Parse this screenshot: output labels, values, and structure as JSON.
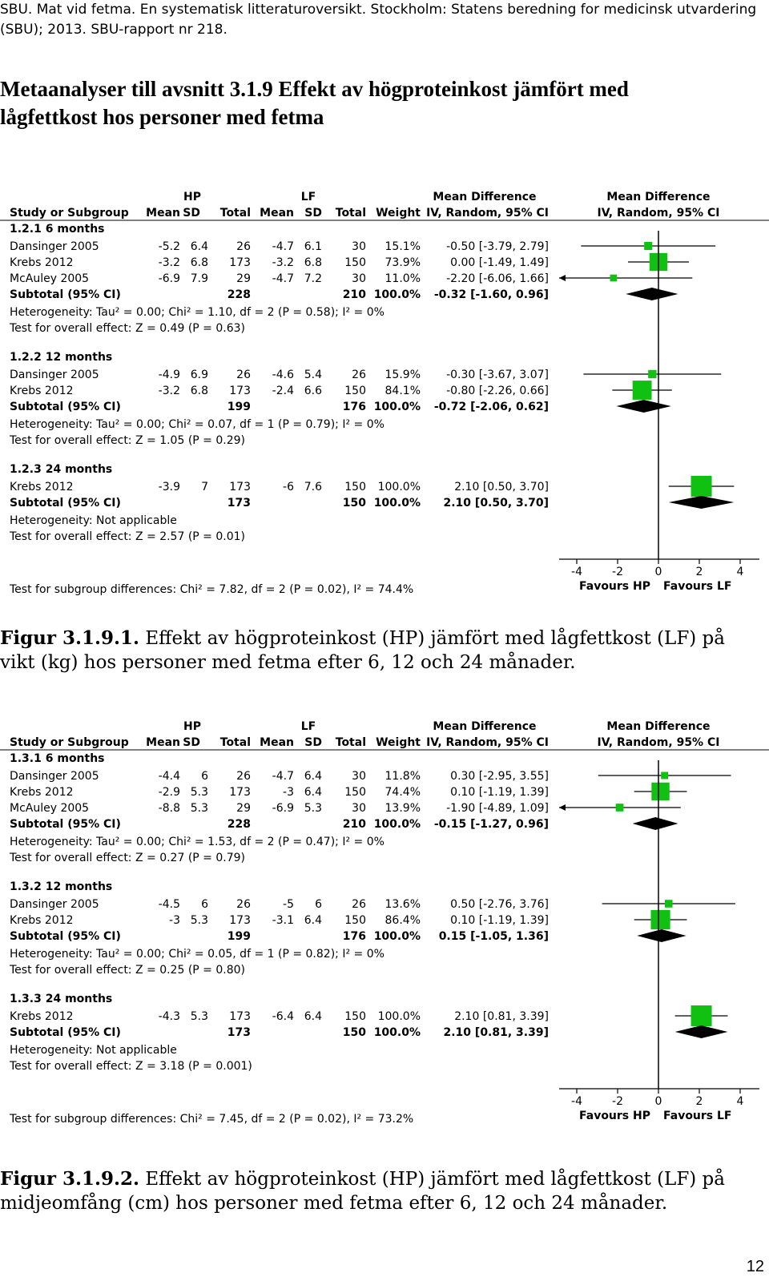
{
  "header": {
    "line1": "SBU. Mat vid fetma. En systematisk litteraturoversikt. Stockholm: Statens beredning for medicinsk utvardering",
    "line2": "(SBU); 2013. SBU-rapport nr 218."
  },
  "title": {
    "line1": "Metaanalyser till avsnitt 3.1.9 Effekt av högproteinkost jämfört med",
    "line2": "lågfettkost hos personer med fetma"
  },
  "colors": {
    "study_marker": "#11c111",
    "diamond": "#000000",
    "axis": "#000000"
  },
  "figures": [
    {
      "caption_bold": "Figur 3.1.9.1.",
      "caption_text": " Effekt av högproteinkost (HP) jämfört med lågfettkost (LF) på vikt (kg) hos personer med fetma efter 6, 12 och 24 månader."
    },
    {
      "caption_bold": "Figur 3.1.9.2.",
      "caption_text": " Effekt av högproteinkost (HP) jämfört med lågfettkost (LF) på midjeomfång (cm) hos personer med fetma efter 6, 12 och 24 månader."
    }
  ],
  "chart_data": [
    {
      "type": "forest",
      "headers": {
        "group_hp": "HP",
        "group_lf": "LF",
        "md_left": "Mean Difference",
        "md_right": "Mean Difference",
        "study": "Study or Subgroup",
        "mean": "Mean",
        "sd": "SD",
        "total": "Total",
        "weight": "Weight",
        "ci_left": "IV, Random, 95% CI",
        "ci_right": "IV, Random, 95% CI"
      },
      "xlim": [
        -4,
        4
      ],
      "xticks": [
        "-4",
        "-2",
        "0",
        "2",
        "4"
      ],
      "favours_left": "Favours HP",
      "favours_right": "Favours LF",
      "subgroups": [
        {
          "label": "1.2.1 6 months",
          "studies": [
            {
              "name": "Dansinger 2005",
              "hp_mean": "-5.2",
              "hp_sd": "6.4",
              "hp_total": "26",
              "lf_mean": "-4.7",
              "lf_sd": "6.1",
              "lf_total": "30",
              "weight_text": "15.1%",
              "ci_text": "-0.50 [-3.79, 2.79]",
              "md": -0.5,
              "lo": -3.79,
              "hi": 2.79,
              "weight": 15.1
            },
            {
              "name": "Krebs 2012",
              "hp_mean": "-3.2",
              "hp_sd": "6.8",
              "hp_total": "173",
              "lf_mean": "-3.2",
              "lf_sd": "6.8",
              "lf_total": "150",
              "weight_text": "73.9%",
              "ci_text": "0.00 [-1.49, 1.49]",
              "md": 0.0,
              "lo": -1.49,
              "hi": 1.49,
              "weight": 73.9
            },
            {
              "name": "McAuley 2005",
              "hp_mean": "-6.9",
              "hp_sd": "7.9",
              "hp_total": "29",
              "lf_mean": "-4.7",
              "lf_sd": "7.2",
              "lf_total": "30",
              "weight_text": "11.0%",
              "ci_text": "-2.20 [-6.06, 1.66]",
              "md": -2.2,
              "lo": -6.06,
              "hi": 1.66,
              "weight": 11.0
            }
          ],
          "subtotal": {
            "label": "Subtotal (95% CI)",
            "hp_total": "228",
            "lf_total": "210",
            "weight_text": "100.0%",
            "ci_text": "-0.32 [-1.60, 0.96]",
            "md": -0.32,
            "lo": -1.6,
            "hi": 0.96
          },
          "heterogeneity": "Heterogeneity: Tau² = 0.00; Chi² = 1.10, df = 2 (P = 0.58); I² = 0%",
          "overall": "Test for overall effect: Z = 0.49 (P = 0.63)"
        },
        {
          "label": "1.2.2 12 months",
          "studies": [
            {
              "name": "Dansinger 2005",
              "hp_mean": "-4.9",
              "hp_sd": "6.9",
              "hp_total": "26",
              "lf_mean": "-4.6",
              "lf_sd": "5.4",
              "lf_total": "26",
              "weight_text": "15.9%",
              "ci_text": "-0.30 [-3.67, 3.07]",
              "md": -0.3,
              "lo": -3.67,
              "hi": 3.07,
              "weight": 15.9
            },
            {
              "name": "Krebs 2012",
              "hp_mean": "-3.2",
              "hp_sd": "6.8",
              "hp_total": "173",
              "lf_mean": "-2.4",
              "lf_sd": "6.6",
              "lf_total": "150",
              "weight_text": "84.1%",
              "ci_text": "-0.80 [-2.26, 0.66]",
              "md": -0.8,
              "lo": -2.26,
              "hi": 0.66,
              "weight": 84.1
            }
          ],
          "subtotal": {
            "label": "Subtotal (95% CI)",
            "hp_total": "199",
            "lf_total": "176",
            "weight_text": "100.0%",
            "ci_text": "-0.72 [-2.06, 0.62]",
            "md": -0.72,
            "lo": -2.06,
            "hi": 0.62
          },
          "heterogeneity": "Heterogeneity: Tau² = 0.00; Chi² = 0.07, df = 1 (P = 0.79); I² = 0%",
          "overall": "Test for overall effect: Z = 1.05 (P = 0.29)"
        },
        {
          "label": "1.2.3 24 months",
          "studies": [
            {
              "name": "Krebs 2012",
              "hp_mean": "-3.9",
              "hp_sd": "7",
              "hp_total": "173",
              "lf_mean": "-6",
              "lf_sd": "7.6",
              "lf_total": "150",
              "weight_text": "100.0%",
              "ci_text": "2.10 [0.50, 3.70]",
              "md": 2.1,
              "lo": 0.5,
              "hi": 3.7,
              "weight": 100.0
            }
          ],
          "subtotal": {
            "label": "Subtotal (95% CI)",
            "hp_total": "173",
            "lf_total": "150",
            "weight_text": "100.0%",
            "ci_text": "2.10 [0.50, 3.70]",
            "md": 2.1,
            "lo": 0.5,
            "hi": 3.7
          },
          "heterogeneity": "Heterogeneity: Not applicable",
          "overall": "Test for overall effect: Z = 2.57 (P = 0.01)"
        }
      ],
      "subgroup_test": "Test for subgroup differences: Chi² = 7.82, df = 2 (P = 0.02), I² = 74.4%"
    },
    {
      "type": "forest",
      "headers": {
        "group_hp": "HP",
        "group_lf": "LF",
        "md_left": "Mean Difference",
        "md_right": "Mean Difference",
        "study": "Study or Subgroup",
        "mean": "Mean",
        "sd": "SD",
        "total": "Total",
        "weight": "Weight",
        "ci_left": "IV, Random, 95% CI",
        "ci_right": "IV, Random, 95% CI"
      },
      "xlim": [
        -4,
        4
      ],
      "xticks": [
        "-4",
        "-2",
        "0",
        "2",
        "4"
      ],
      "favours_left": "Favours HP",
      "favours_right": "Favours LF",
      "subgroups": [
        {
          "label": "1.3.1 6 months",
          "studies": [
            {
              "name": "Dansinger 2005",
              "hp_mean": "-4.4",
              "hp_sd": "6",
              "hp_total": "26",
              "lf_mean": "-4.7",
              "lf_sd": "6.4",
              "lf_total": "30",
              "weight_text": "11.8%",
              "ci_text": "0.30 [-2.95, 3.55]",
              "md": 0.3,
              "lo": -2.95,
              "hi": 3.55,
              "weight": 11.8
            },
            {
              "name": "Krebs 2012",
              "hp_mean": "-2.9",
              "hp_sd": "5.3",
              "hp_total": "173",
              "lf_mean": "-3",
              "lf_sd": "6.4",
              "lf_total": "150",
              "weight_text": "74.4%",
              "ci_text": "0.10 [-1.19, 1.39]",
              "md": 0.1,
              "lo": -1.19,
              "hi": 1.39,
              "weight": 74.4
            },
            {
              "name": "McAuley 2005",
              "hp_mean": "-8.8",
              "hp_sd": "5.3",
              "hp_total": "29",
              "lf_mean": "-6.9",
              "lf_sd": "5.3",
              "lf_total": "30",
              "weight_text": "13.9%",
              "ci_text": "-1.90 [-4.89, 1.09]",
              "md": -1.9,
              "lo": -4.89,
              "hi": 1.09,
              "weight": 13.9
            }
          ],
          "subtotal": {
            "label": "Subtotal (95% CI)",
            "hp_total": "228",
            "lf_total": "210",
            "weight_text": "100.0%",
            "ci_text": "-0.15 [-1.27, 0.96]",
            "md": -0.15,
            "lo": -1.27,
            "hi": 0.96
          },
          "heterogeneity": "Heterogeneity: Tau² = 0.00; Chi² = 1.53, df = 2 (P = 0.47); I² = 0%",
          "overall": "Test for overall effect: Z = 0.27 (P = 0.79)"
        },
        {
          "label": "1.3.2 12 months",
          "studies": [
            {
              "name": "Dansinger 2005",
              "hp_mean": "-4.5",
              "hp_sd": "6",
              "hp_total": "26",
              "lf_mean": "-5",
              "lf_sd": "6",
              "lf_total": "26",
              "weight_text": "13.6%",
              "ci_text": "0.50 [-2.76, 3.76]",
              "md": 0.5,
              "lo": -2.76,
              "hi": 3.76,
              "weight": 13.6
            },
            {
              "name": "Krebs 2012",
              "hp_mean": "-3",
              "hp_sd": "5.3",
              "hp_total": "173",
              "lf_mean": "-3.1",
              "lf_sd": "6.4",
              "lf_total": "150",
              "weight_text": "86.4%",
              "ci_text": "0.10 [-1.19, 1.39]",
              "md": 0.1,
              "lo": -1.19,
              "hi": 1.39,
              "weight": 86.4
            }
          ],
          "subtotal": {
            "label": "Subtotal (95% CI)",
            "hp_total": "199",
            "lf_total": "176",
            "weight_text": "100.0%",
            "ci_text": "0.15 [-1.05, 1.36]",
            "md": 0.15,
            "lo": -1.05,
            "hi": 1.36
          },
          "heterogeneity": "Heterogeneity: Tau² = 0.00; Chi² = 0.05, df = 1 (P = 0.82); I² = 0%",
          "overall": "Test for overall effect: Z = 0.25 (P = 0.80)"
        },
        {
          "label": "1.3.3 24 months",
          "studies": [
            {
              "name": "Krebs 2012",
              "hp_mean": "-4.3",
              "hp_sd": "5.3",
              "hp_total": "173",
              "lf_mean": "-6.4",
              "lf_sd": "6.4",
              "lf_total": "150",
              "weight_text": "100.0%",
              "ci_text": "2.10 [0.81, 3.39]",
              "md": 2.1,
              "lo": 0.81,
              "hi": 3.39,
              "weight": 100.0
            }
          ],
          "subtotal": {
            "label": "Subtotal (95% CI)",
            "hp_total": "173",
            "lf_total": "150",
            "weight_text": "100.0%",
            "ci_text": "2.10 [0.81, 3.39]",
            "md": 2.1,
            "lo": 0.81,
            "hi": 3.39
          },
          "heterogeneity": "Heterogeneity: Not applicable",
          "overall": "Test for overall effect: Z = 3.18 (P = 0.001)"
        }
      ],
      "subgroup_test": "Test for subgroup differences: Chi² = 7.45, df = 2 (P = 0.02), I² = 73.2%"
    }
  ],
  "page_number": "12"
}
